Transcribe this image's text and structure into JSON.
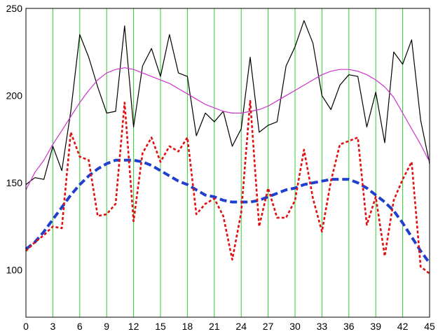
{
  "chart_data": {
    "type": "line",
    "title": "",
    "xlabel": "",
    "ylabel": "",
    "xlim": [
      0,
      45
    ],
    "ylim": [
      73,
      250
    ],
    "x_ticks": [
      0,
      3,
      6,
      9,
      12,
      15,
      18,
      21,
      24,
      27,
      30,
      33,
      36,
      39,
      42,
      45
    ],
    "y_ticks": [
      100,
      150,
      200,
      250
    ],
    "vertical_gridlines_at": [
      3,
      6,
      9,
      12,
      15,
      18,
      21,
      24,
      27,
      30,
      33,
      36,
      39,
      42,
      45
    ],
    "grid_color": "#33cc33",
    "series": [
      {
        "style": "solid-thin",
        "color": "#000000",
        "x": [
          0,
          1,
          2,
          3,
          4,
          5,
          6,
          7,
          8,
          9,
          10,
          11,
          12,
          13,
          14,
          15,
          16,
          17,
          18,
          19,
          20,
          21,
          22,
          23,
          24,
          25,
          26,
          27,
          28,
          29,
          30,
          31,
          32,
          33,
          34,
          35,
          36,
          37,
          38,
          39,
          40,
          41,
          42,
          43,
          44,
          45
        ],
        "values": [
          149,
          153,
          152,
          171,
          157,
          191,
          235,
          222,
          205,
          190,
          191,
          240,
          182,
          217,
          227,
          211,
          235,
          213,
          211,
          177,
          190,
          185,
          191,
          171,
          181,
          222,
          179,
          183,
          185,
          217,
          228,
          243,
          230,
          200,
          192,
          206,
          212,
          211,
          182,
          202,
          173,
          225,
          218,
          232,
          186,
          161
        ]
      },
      {
        "style": "solid-thin",
        "color": "#cc33cc",
        "x": [
          0,
          1,
          2,
          3,
          4,
          5,
          6,
          7,
          8,
          9,
          10,
          11,
          12,
          13,
          14,
          15,
          16,
          17,
          18,
          19,
          20,
          21,
          22,
          23,
          24,
          25,
          26,
          27,
          28,
          29,
          30,
          31,
          32,
          33,
          34,
          35,
          36,
          37,
          38,
          39,
          40,
          41,
          42,
          43,
          44,
          45
        ],
        "values": [
          146,
          156,
          163,
          172,
          180,
          188,
          196,
          203,
          209,
          213,
          215,
          216,
          215,
          213,
          211,
          209,
          207,
          204,
          201,
          198,
          195,
          193,
          191,
          190,
          190,
          191,
          192,
          194,
          197,
          200,
          203,
          206,
          209,
          212,
          214,
          215,
          215,
          214,
          212,
          209,
          205,
          199,
          190,
          181,
          172,
          162
        ]
      },
      {
        "style": "dashed-thick",
        "color": "#1f3fcc",
        "x": [
          0,
          1,
          2,
          3,
          4,
          5,
          6,
          7,
          8,
          9,
          10,
          11,
          12,
          13,
          14,
          15,
          16,
          17,
          18,
          19,
          20,
          21,
          22,
          23,
          24,
          25,
          26,
          27,
          28,
          29,
          30,
          31,
          32,
          33,
          34,
          35,
          36,
          37,
          38,
          39,
          40,
          41,
          42,
          43,
          44,
          45
        ],
        "values": [
          112,
          116,
          122,
          129,
          136,
          143,
          149,
          154,
          158,
          161,
          163,
          163,
          163,
          162,
          160,
          157,
          154,
          151,
          149,
          146,
          143,
          142,
          140,
          139,
          139,
          139,
          140,
          142,
          144,
          146,
          147,
          149,
          150,
          151,
          152,
          152,
          152,
          150,
          147,
          143,
          139,
          134,
          127,
          119,
          111,
          104
        ]
      },
      {
        "style": "dashed",
        "color": "#e01010",
        "x": [
          0,
          1,
          2,
          3,
          4,
          5,
          6,
          7,
          8,
          9,
          10,
          11,
          12,
          13,
          14,
          15,
          16,
          17,
          18,
          19,
          20,
          21,
          22,
          23,
          24,
          25,
          26,
          27,
          28,
          29,
          30,
          31,
          32,
          33,
          34,
          35,
          36,
          37,
          38,
          39,
          40,
          41,
          42,
          43,
          44,
          45
        ],
        "values": [
          111,
          116,
          120,
          125,
          124,
          179,
          165,
          163,
          131,
          132,
          138,
          196,
          128,
          167,
          176,
          162,
          171,
          168,
          176,
          132,
          138,
          141,
          131,
          106,
          133,
          197,
          125,
          147,
          130,
          130,
          140,
          169,
          141,
          122,
          151,
          172,
          174,
          176,
          126,
          142,
          108,
          140,
          152,
          162,
          102,
          98
        ]
      }
    ]
  }
}
